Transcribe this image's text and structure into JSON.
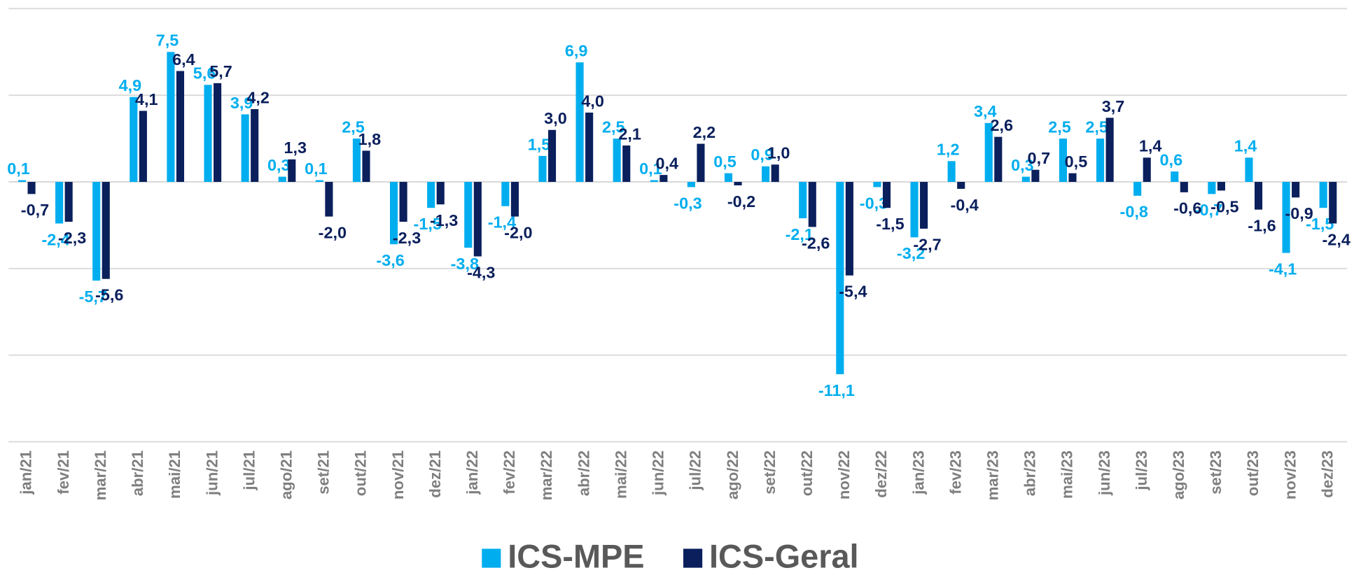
{
  "chart_data": {
    "type": "bar",
    "categories": [
      "jan/21",
      "fev/21",
      "mar/21",
      "abr/21",
      "mai/21",
      "jun/21",
      "jul/21",
      "ago/21",
      "set/21",
      "out/21",
      "nov/21",
      "dez/21",
      "jan/22",
      "fev/22",
      "mar/22",
      "abr/22",
      "mai/22",
      "jun/22",
      "jul/22",
      "ago/22",
      "set/22",
      "out/22",
      "nov/22",
      "dez/22",
      "jan/23",
      "fev/23",
      "mar/23",
      "abr/23",
      "mai/23",
      "jun/23",
      "jul/23",
      "ago/23",
      "set/23",
      "out/23",
      "nov/23",
      "dez/23"
    ],
    "series": [
      {
        "name": "ICS-MPE",
        "color": "#00aeef",
        "values": [
          0.1,
          -2.4,
          -5.7,
          4.9,
          7.5,
          5.6,
          3.9,
          0.3,
          0.1,
          2.5,
          -3.6,
          -1.5,
          -3.8,
          -1.4,
          1.5,
          6.9,
          2.5,
          0.1,
          -0.3,
          0.5,
          0.9,
          -2.1,
          -11.1,
          -0.3,
          -3.2,
          1.2,
          3.4,
          0.3,
          2.5,
          2.5,
          -0.8,
          0.6,
          -0.7,
          1.4,
          -4.1,
          -1.5
        ],
        "value_labels": [
          "0,1",
          "-2,4",
          "-5,7",
          "4,9",
          "7,5",
          "5,6",
          "3,9",
          "0,3",
          "0,1",
          "2,5",
          "-3,6",
          "-1,5",
          "-3,8",
          "-1,4",
          "1,5",
          "6,9",
          "2,5",
          "0,1",
          "-0,3",
          "0,5",
          "0,9",
          "-2,1",
          "-11,1",
          "-0,3",
          "-3,2",
          "1,2",
          "3,4",
          "0,3",
          "2,5",
          "2,5",
          "-0,8",
          "0,6",
          "-0,7",
          "1,4",
          "-4,1",
          "-1,5"
        ]
      },
      {
        "name": "ICS-Geral",
        "color": "#0a1f5c",
        "values": [
          -0.7,
          -2.3,
          -5.6,
          4.1,
          6.4,
          5.7,
          4.2,
          1.3,
          -2.0,
          1.8,
          -2.3,
          -1.3,
          -4.3,
          -2.0,
          3.0,
          4.0,
          2.1,
          0.4,
          2.2,
          -0.2,
          1.0,
          -2.6,
          -5.4,
          -1.5,
          -2.7,
          -0.4,
          2.6,
          0.7,
          0.5,
          3.7,
          1.4,
          -0.6,
          -0.5,
          -1.6,
          -0.9,
          -2.4
        ],
        "value_labels": [
          "-0,7",
          "-2,3",
          "-5,6",
          "4,1",
          "6,4",
          "5,7",
          "4,2",
          "1,3",
          "-2,0",
          "1,8",
          "-2,3",
          "-1,3",
          "-4,3",
          "-2,0",
          "3,0",
          "4,0",
          "2,1",
          "0,4",
          "2,2",
          "-0,2",
          "1,0",
          "-2,6",
          "-5,4",
          "-1,5",
          "-2,7",
          "-0,4",
          "2,6",
          "0,7",
          "0,5",
          "3,7",
          "1,4",
          "-0,6",
          "-0,5",
          "-1,6",
          "-0,9",
          "-2,4"
        ]
      }
    ],
    "ylim": [
      -15,
      10
    ],
    "yticks": [
      -15,
      -10,
      -5,
      0,
      5,
      10
    ],
    "grid": true,
    "legend": "bottom"
  }
}
